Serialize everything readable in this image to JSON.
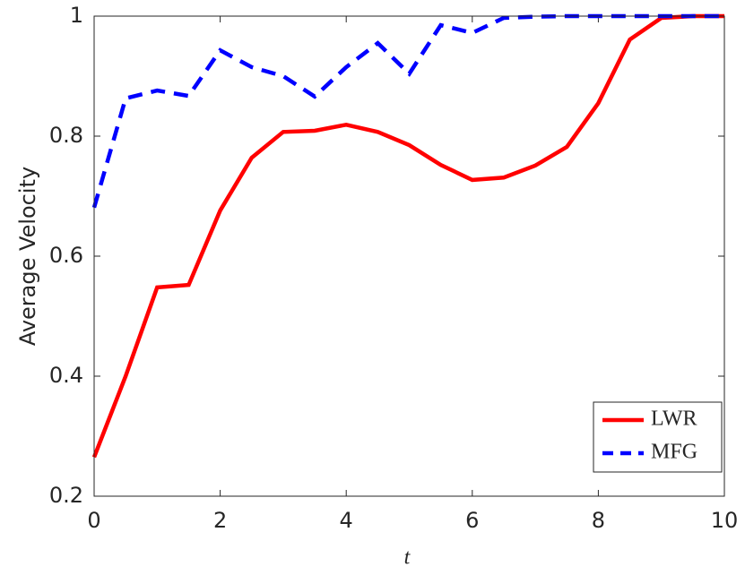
{
  "chart_data": {
    "type": "line",
    "x_label": "t",
    "y_label": "Average Velocity",
    "x": [
      0,
      0.5,
      1,
      1.5,
      2,
      2.5,
      3,
      3.5,
      4,
      4.5,
      5,
      5.5,
      6,
      6.5,
      7,
      7.5,
      8,
      8.5,
      9,
      9.5,
      10
    ],
    "series": [
      {
        "name": "LWR",
        "color": "#ff0000",
        "linestyle": "solid",
        "values": [
          0.265,
          0.4,
          0.548,
          0.552,
          0.676,
          0.764,
          0.807,
          0.809,
          0.819,
          0.807,
          0.785,
          0.752,
          0.727,
          0.731,
          0.751,
          0.782,
          0.855,
          0.961,
          0.997,
          1.0,
          1.0
        ]
      },
      {
        "name": "MFG",
        "color": "#0000ff",
        "linestyle": "dashed",
        "values": [
          0.681,
          0.863,
          0.876,
          0.867,
          0.943,
          0.915,
          0.9,
          0.866,
          0.915,
          0.955,
          0.904,
          0.985,
          0.972,
          0.997,
          0.999,
          1.0,
          1.0,
          1.0,
          1.0,
          1.0,
          1.0
        ]
      }
    ],
    "xlim": [
      0,
      10
    ],
    "ylim": [
      0.2,
      1
    ],
    "xticks": [
      0,
      2,
      4,
      6,
      8,
      10
    ],
    "yticks": [
      0.2,
      0.4,
      0.6,
      0.8,
      1
    ],
    "grid": false,
    "legend": "southeast"
  }
}
